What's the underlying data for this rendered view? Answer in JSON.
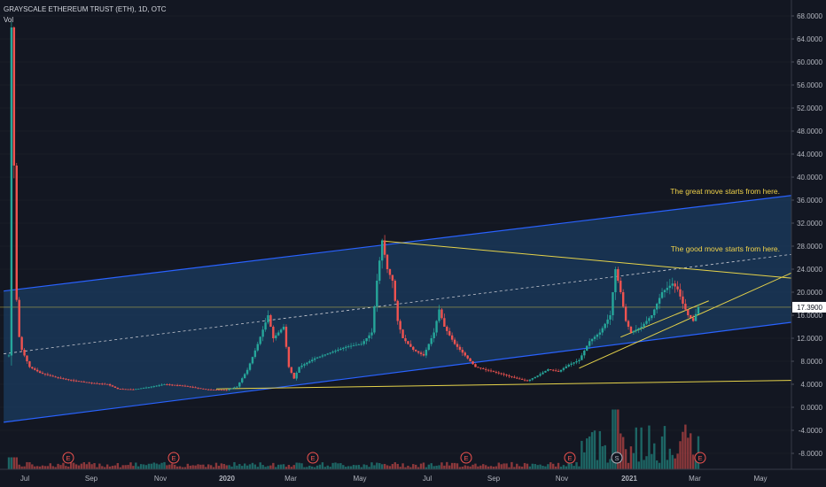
{
  "header": {
    "title": "GRAYSCALE ETHEREUM TRUST (ETH), 1D, OTC",
    "vol_label": "Vol"
  },
  "colors": {
    "background": "#131722",
    "up": "#26a69a",
    "down": "#ef5350",
    "channel_line": "#2962ff",
    "channel_fill": "#1e4976",
    "trend_line": "#e6d34a",
    "annotation_text": "#f0d24a",
    "price_label_bg": "#ffffff",
    "grid": "#2a2e39",
    "axis_text": "#b2b5be"
  },
  "annotations": [
    "The great move starts from here.",
    "The good move starts from here."
  ],
  "price_label": "17.3900",
  "events": [
    "E",
    "E",
    "E",
    "E",
    "E",
    "S",
    "E"
  ],
  "chart_data": {
    "type": "candlestick",
    "x_ticks": [
      "Jul",
      "Sep",
      "Nov",
      "2020",
      "Mar",
      "May",
      "Jul",
      "Sep",
      "Nov",
      "2021",
      "Mar",
      "May"
    ],
    "y_ticks": [
      "68.0000",
      "64.0000",
      "60.0000",
      "56.0000",
      "52.0000",
      "48.0000",
      "44.0000",
      "40.0000",
      "36.0000",
      "32.0000",
      "28.0000",
      "24.0000",
      "20.0000",
      "16.0000",
      "12.0000",
      "8.0000",
      "4.0000",
      "0.0000",
      "-4.0000",
      "-8.0000"
    ],
    "ylim": [
      -10,
      69
    ],
    "last_price": 17.39,
    "price_path": [
      [
        0,
        9
      ],
      [
        0.5,
        66
      ],
      [
        1,
        42
      ],
      [
        1.6,
        14
      ],
      [
        2.5,
        10
      ],
      [
        4,
        7
      ],
      [
        6,
        6
      ],
      [
        9,
        5.2
      ],
      [
        12,
        4.7
      ],
      [
        16,
        4.2
      ],
      [
        19,
        4.0
      ],
      [
        21,
        3.2
      ],
      [
        24,
        3.1
      ],
      [
        27,
        3.5
      ],
      [
        30,
        4.0
      ],
      [
        34,
        3.7
      ],
      [
        38,
        3.1
      ],
      [
        42,
        3.0
      ],
      [
        44,
        3.6
      ],
      [
        46,
        6.5
      ],
      [
        48,
        11
      ],
      [
        50,
        16
      ],
      [
        51,
        12
      ],
      [
        53,
        14
      ],
      [
        54,
        7
      ],
      [
        55,
        5
      ],
      [
        56,
        7
      ],
      [
        59,
        8.5
      ],
      [
        62,
        9.5
      ],
      [
        65,
        10.5
      ],
      [
        68,
        11
      ],
      [
        70,
        13
      ],
      [
        71,
        22
      ],
      [
        72,
        29
      ],
      [
        73,
        24
      ],
      [
        74,
        22
      ],
      [
        75,
        15
      ],
      [
        76,
        12
      ],
      [
        78,
        10
      ],
      [
        80,
        9
      ],
      [
        82,
        13
      ],
      [
        83,
        17
      ],
      [
        84,
        14
      ],
      [
        86,
        11
      ],
      [
        88,
        9
      ],
      [
        90,
        7
      ],
      [
        92,
        6.5
      ],
      [
        95,
        5.8
      ],
      [
        98,
        5.0
      ],
      [
        100,
        4.6
      ],
      [
        102,
        5.5
      ],
      [
        104,
        6.6
      ],
      [
        106,
        6.2
      ],
      [
        108,
        7.4
      ],
      [
        110,
        8.2
      ],
      [
        112,
        11.5
      ],
      [
        114,
        13
      ],
      [
        116,
        16
      ],
      [
        117,
        24
      ],
      [
        118,
        20
      ],
      [
        119,
        15
      ],
      [
        120,
        13
      ],
      [
        122,
        14
      ],
      [
        124,
        16
      ],
      [
        126,
        20
      ],
      [
        128,
        21.5
      ],
      [
        129,
        20.5
      ],
      [
        130,
        18
      ],
      [
        131,
        16
      ],
      [
        132,
        15
      ],
      [
        133,
        17.4
      ]
    ],
    "channel_upper": [
      [
        -1,
        20.2
      ],
      [
        160,
        37.8
      ]
    ],
    "channel_mid": [
      [
        -1,
        9.3
      ],
      [
        160,
        27.6
      ]
    ],
    "channel_lower": [
      [
        -1,
        -2.6
      ],
      [
        160,
        15.8
      ]
    ],
    "trendlines": [
      [
        [
          40,
          3.2
        ],
        [
          160,
          4.8
        ]
      ],
      [
        [
          72,
          28.9
        ],
        [
          160,
          21.7
        ]
      ],
      [
        [
          110,
          6.8
        ],
        [
          160,
          27
        ]
      ],
      [
        [
          118,
          12.2
        ],
        [
          135,
          18.5
        ]
      ]
    ],
    "volume_scale": 100
  }
}
